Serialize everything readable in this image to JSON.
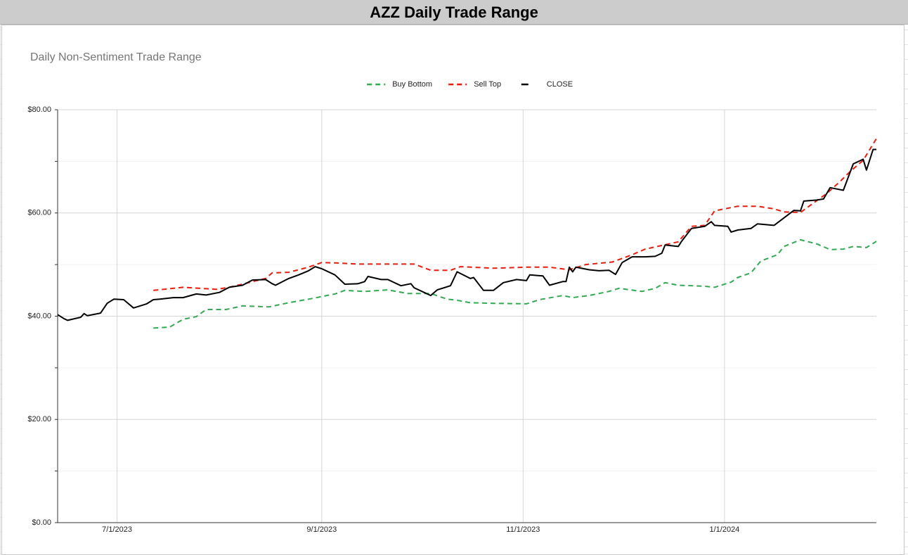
{
  "header": {
    "title": "AZZ Daily Trade Range"
  },
  "chart_data": {
    "type": "line",
    "title": "Daily Non-Sentiment Trade Range",
    "xlim": [
      "6/13/2023",
      "2/16/2024"
    ],
    "xticks": [
      "7/1/2023",
      "9/1/2023",
      "11/1/2023",
      "1/1/2024"
    ],
    "ylim": [
      0,
      80
    ],
    "yticks": [
      {
        "value": 0,
        "label": "$0.00"
      },
      {
        "value": 20,
        "label": "$20.00"
      },
      {
        "value": 40,
        "label": "$40.00"
      },
      {
        "value": 60,
        "label": "$60.00"
      },
      {
        "value": 80,
        "label": "$80.00"
      }
    ],
    "minor_yticks": [
      10,
      30,
      50,
      70
    ],
    "grid": true,
    "legend": "top",
    "series": [
      {
        "name": "Buy Bottom",
        "color": "#34a853",
        "line_style": "dashed",
        "x": [
          "7/12/2023",
          "7/17/2023",
          "7/21/2023",
          "7/25/2023",
          "7/28/2023",
          "8/3/2023",
          "8/8/2023",
          "8/16/2023",
          "8/22/2023",
          "8/28/2023",
          "9/5/2023",
          "9/8/2023",
          "9/14/2023",
          "9/21/2023",
          "9/27/2023",
          "10/4/2023",
          "10/9/2023",
          "10/12/2023",
          "10/16/2023",
          "10/23/2023",
          "11/2/2023",
          "11/6/2023",
          "11/13/2023",
          "11/16/2023",
          "11/21/2023",
          "11/27/2023",
          "11/30/2023",
          "12/7/2023",
          "12/11/2023",
          "12/14/2023",
          "12/18/2023",
          "12/26/2023",
          "12/29/2023",
          "1/3/2024",
          "1/5/2024",
          "1/9/2024",
          "1/12/2024",
          "1/17/2024",
          "1/19/2024",
          "1/24/2024",
          "1/29/2024",
          "2/2/2024",
          "2/6/2024",
          "2/9/2024",
          "2/13/2024",
          "2/16/2024"
        ],
        "values": [
          37.7,
          37.9,
          39.4,
          39.9,
          41.3,
          41.3,
          42.0,
          41.8,
          42.6,
          43.3,
          44.3,
          45.0,
          44.8,
          45.1,
          44.4,
          44.4,
          43.3,
          43.1,
          42.6,
          42.5,
          42.4,
          43.2,
          44.0,
          43.6,
          44.0,
          44.8,
          45.4,
          44.8,
          45.4,
          46.5,
          46.0,
          45.8,
          45.6,
          46.6,
          47.5,
          48.4,
          50.7,
          51.9,
          53.5,
          54.8,
          54.0,
          52.9,
          53.0,
          53.5,
          53.3,
          54.5
        ]
      },
      {
        "name": "Sell Top",
        "color": "#ea1c0d",
        "line_style": "dashed",
        "x": [
          "7/12/2023",
          "7/21/2023",
          "7/31/2023",
          "8/4/2023",
          "8/15/2023",
          "8/17/2023",
          "8/22/2023",
          "8/28/2023",
          "9/1/2023",
          "9/6/2023",
          "9/12/2023",
          "9/25/2023",
          "9/29/2023",
          "10/4/2023",
          "10/10/2023",
          "10/13/2023",
          "10/23/2023",
          "11/2/2023",
          "11/9/2023",
          "11/15/2023",
          "11/20/2023",
          "11/28/2023",
          "12/4/2023",
          "12/8/2023",
          "12/18/2023",
          "12/22/2023",
          "12/26/2023",
          "12/29/2023",
          "1/5/2024",
          "1/11/2024",
          "1/16/2024",
          "1/19/2024",
          "1/24/2024",
          "1/29/2024",
          "2/1/2024",
          "2/5/2024",
          "2/8/2024",
          "2/12/2024",
          "2/16/2024"
        ],
        "values": [
          45.0,
          45.6,
          45.2,
          45.6,
          47.3,
          48.4,
          48.5,
          49.5,
          50.4,
          50.3,
          50.1,
          50.1,
          50.1,
          48.9,
          48.9,
          49.6,
          49.3,
          49.5,
          49.5,
          49.0,
          50.0,
          50.5,
          51.9,
          53.0,
          54.4,
          57.4,
          57.6,
          60.4,
          61.3,
          61.3,
          60.8,
          60.2,
          60.1,
          62.4,
          63.8,
          66.1,
          68.0,
          70.2,
          74.4
        ]
      },
      {
        "name": "CLOSE",
        "color": "#000000",
        "line_style": "solid",
        "x": [
          "6/13/2023",
          "6/15/2023",
          "6/16/2023",
          "6/20/2023",
          "6/21/2023",
          "6/22/2023",
          "6/26/2023",
          "6/28/2023",
          "6/30/2023",
          "7/3/2023",
          "7/6/2023",
          "7/10/2023",
          "7/12/2023",
          "7/14/2023",
          "7/18/2023",
          "7/21/2023",
          "7/25/2023",
          "7/28/2023",
          "8/1/2023",
          "8/4/2023",
          "8/8/2023",
          "8/11/2023",
          "8/15/2023",
          "8/17/2023",
          "8/18/2023",
          "8/22/2023",
          "8/25/2023",
          "8/28/2023",
          "8/30/2023",
          "9/1/2023",
          "9/5/2023",
          "9/8/2023",
          "9/12/2023",
          "9/14/2023",
          "9/15/2023",
          "9/19/2023",
          "9/21/2023",
          "9/25/2023",
          "9/28/2023",
          "9/29/2023",
          "10/2/2023",
          "10/4/2023",
          "10/6/2023",
          "10/10/2023",
          "10/12/2023",
          "10/16/2023",
          "10/17/2023",
          "10/20/2023",
          "10/23/2023",
          "10/26/2023",
          "10/30/2023",
          "11/2/2023",
          "11/3/2023",
          "11/7/2023",
          "11/9/2023",
          "11/13/2023",
          "11/14/2023",
          "11/15/2023",
          "11/16/2023",
          "11/17/2023",
          "11/21/2023",
          "11/24/2023",
          "11/27/2023",
          "11/29/2023",
          "12/1/2023",
          "12/4/2023",
          "12/8/2023",
          "12/11/2023",
          "12/13/2023",
          "12/14/2023",
          "12/18/2023",
          "12/19/2023",
          "12/22/2023",
          "12/26/2023",
          "12/28/2023",
          "12/29/2023",
          "1/2/2024",
          "1/3/2024",
          "1/5/2024",
          "1/9/2024",
          "1/11/2024",
          "1/16/2024",
          "1/22/2024",
          "1/24/2024",
          "1/25/2024",
          "1/29/2024",
          "1/31/2024",
          "2/2/2024",
          "2/6/2024",
          "2/9/2024",
          "2/12/2024",
          "2/13/2024",
          "2/15/2024",
          "2/16/2024"
        ],
        "values": [
          40.3,
          39.5,
          39.2,
          39.8,
          40.5,
          40.1,
          40.6,
          42.5,
          43.3,
          43.2,
          41.6,
          42.4,
          43.2,
          43.3,
          43.6,
          43.6,
          44.3,
          44.1,
          44.6,
          45.6,
          46.0,
          47.0,
          47.1,
          46.3,
          46.0,
          47.3,
          48.0,
          48.8,
          49.6,
          49.2,
          48.0,
          46.2,
          46.3,
          46.7,
          47.7,
          47.1,
          47.1,
          45.9,
          46.3,
          45.5,
          44.6,
          44.0,
          45.1,
          45.9,
          48.6,
          47.3,
          47.5,
          45.0,
          45.0,
          46.5,
          47.1,
          46.9,
          48.0,
          47.8,
          46.0,
          46.7,
          46.7,
          49.5,
          48.6,
          49.5,
          49.0,
          48.8,
          48.9,
          48.1,
          50.4,
          51.5,
          51.5,
          51.6,
          52.2,
          53.8,
          53.5,
          54.5,
          57.0,
          57.4,
          58.3,
          57.6,
          57.4,
          56.3,
          56.7,
          57.0,
          57.9,
          57.6,
          60.5,
          60.4,
          62.3,
          62.5,
          62.7,
          64.9,
          64.4,
          69.5,
          70.4,
          68.3,
          72.3,
          72.3
        ]
      }
    ]
  }
}
